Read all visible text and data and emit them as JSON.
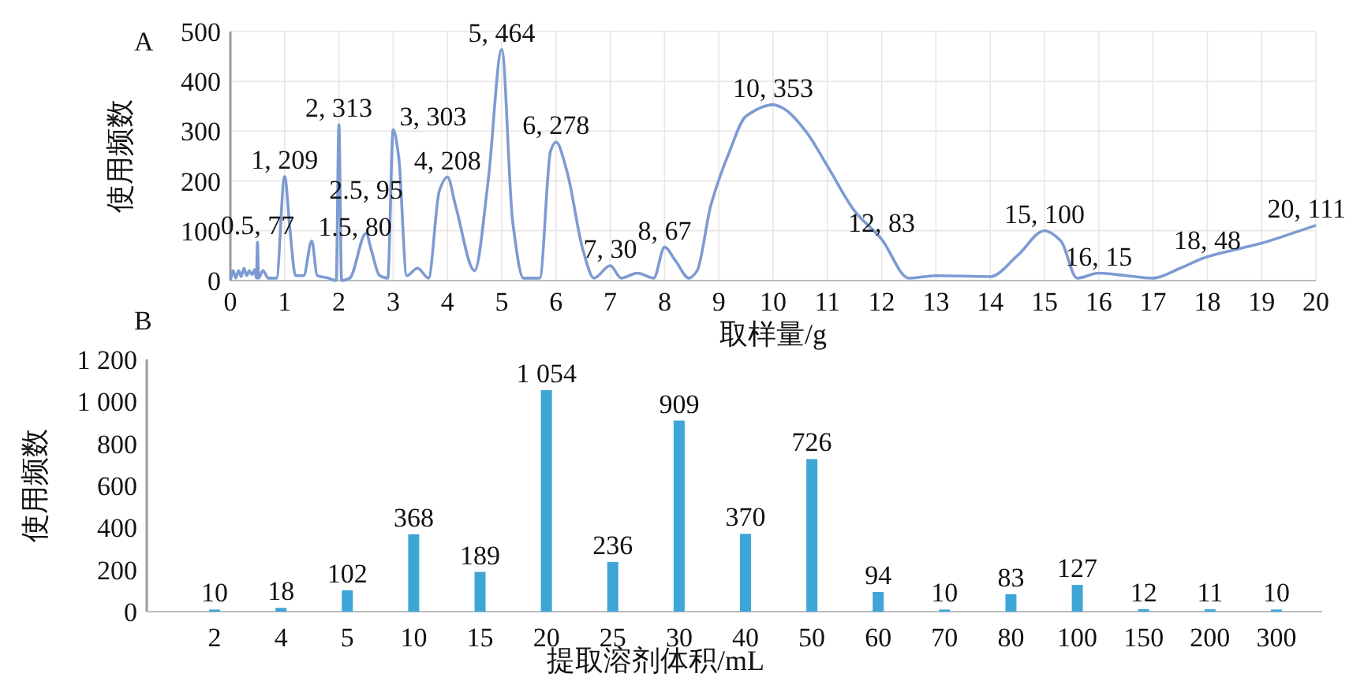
{
  "chart_data": [
    {
      "type": "line",
      "title": "A",
      "xlabel": "取样量/g",
      "ylabel": "使用频数",
      "xlim": [
        0,
        20
      ],
      "xticks": [
        0,
        1,
        2,
        3,
        4,
        5,
        6,
        7,
        8,
        9,
        10,
        11,
        12,
        13,
        14,
        15,
        16,
        17,
        18,
        19,
        20
      ],
      "ylim": [
        0,
        500
      ],
      "yticks": [
        0,
        100,
        200,
        300,
        400,
        500
      ],
      "grid": true,
      "series": [
        {
          "color": "#7d9bd2",
          "x": [
            0,
            0.05,
            0.1,
            0.15,
            0.2,
            0.25,
            0.3,
            0.35,
            0.4,
            0.45,
            0.48,
            0.5,
            0.52,
            0.6,
            0.7,
            0.85,
            1,
            1.1,
            1.2,
            1.35,
            1.5,
            1.6,
            1.8,
            1.95,
            2,
            2.05,
            2.2,
            2.5,
            2.6,
            2.75,
            2.9,
            3,
            3.1,
            3.25,
            3.45,
            3.65,
            3.85,
            4,
            4.15,
            4.5,
            4.75,
            5,
            5.2,
            5.4,
            5.7,
            5.9,
            6,
            6.2,
            6.5,
            6.7,
            7,
            7.2,
            7.5,
            7.8,
            8,
            8.2,
            8.45,
            8.6,
            8.85,
            9.2,
            9.5,
            10,
            10.2,
            10.6,
            11,
            11.5,
            12,
            12.5,
            13,
            14,
            14.5,
            15,
            15.3,
            15.6,
            16,
            16.5,
            17,
            17.5,
            18,
            19,
            20
          ],
          "values": [
            0,
            20,
            5,
            20,
            8,
            25,
            10,
            20,
            12,
            22,
            5,
            77,
            5,
            20,
            5,
            5,
            209,
            100,
            10,
            10,
            80,
            10,
            5,
            0,
            313,
            0,
            5,
            95,
            60,
            10,
            5,
            303,
            250,
            10,
            25,
            5,
            180,
            208,
            150,
            20,
            200,
            464,
            120,
            5,
            5,
            260,
            278,
            220,
            60,
            5,
            30,
            5,
            15,
            5,
            67,
            40,
            5,
            20,
            150,
            260,
            330,
            353,
            345,
            300,
            230,
            140,
            83,
            5,
            10,
            8,
            50,
            100,
            80,
            5,
            15,
            10,
            5,
            25,
            48,
            75,
            111
          ]
        }
      ],
      "annotations": [
        {
          "text": "0.5, 77",
          "x": 0.5,
          "y": 77
        },
        {
          "text": "1, 209",
          "x": 1,
          "y": 209
        },
        {
          "text": "1.5, 80",
          "x": 1.5,
          "y": 80
        },
        {
          "text": "2, 313",
          "x": 2,
          "y": 313
        },
        {
          "text": "2.5, 95",
          "x": 2.5,
          "y": 95
        },
        {
          "text": "3, 303",
          "x": 3,
          "y": 303
        },
        {
          "text": "4, 208",
          "x": 4,
          "y": 208
        },
        {
          "text": "5, 464",
          "x": 5,
          "y": 464
        },
        {
          "text": "6, 278",
          "x": 6,
          "y": 278
        },
        {
          "text": "7, 30",
          "x": 7,
          "y": 30
        },
        {
          "text": "8, 67",
          "x": 8,
          "y": 67
        },
        {
          "text": "10, 353",
          "x": 10,
          "y": 353
        },
        {
          "text": "12, 83",
          "x": 12,
          "y": 83
        },
        {
          "text": "15, 100",
          "x": 15,
          "y": 100
        },
        {
          "text": "16, 15",
          "x": 16,
          "y": 15
        },
        {
          "text": "18, 48",
          "x": 18,
          "y": 48
        },
        {
          "text": "20, 111",
          "x": 20,
          "y": 111
        }
      ]
    },
    {
      "type": "bar",
      "title": "B",
      "xlabel": "提取溶剂体积/mL",
      "ylabel": "使用频数",
      "categories": [
        "2",
        "4",
        "5",
        "10",
        "15",
        "20",
        "25",
        "30",
        "40",
        "50",
        "60",
        "70",
        "80",
        "100",
        "150",
        "200",
        "300"
      ],
      "values": [
        10,
        18,
        102,
        368,
        189,
        1054,
        236,
        909,
        370,
        726,
        94,
        10,
        83,
        127,
        12,
        11,
        10
      ],
      "value_labels": [
        "10",
        "18",
        "102",
        "368",
        "189",
        "1 054",
        "236",
        "909",
        "370",
        "726",
        "94",
        "10",
        "83",
        "127",
        "12",
        "11",
        "10"
      ],
      "color": "#3ea6d6",
      "ylim": [
        0,
        1200
      ],
      "yticks": [
        0,
        200,
        400,
        600,
        800,
        {
          "value": 1000,
          "label": "1 000"
        },
        {
          "value": 1200,
          "label": "1 200"
        }
      ]
    }
  ]
}
